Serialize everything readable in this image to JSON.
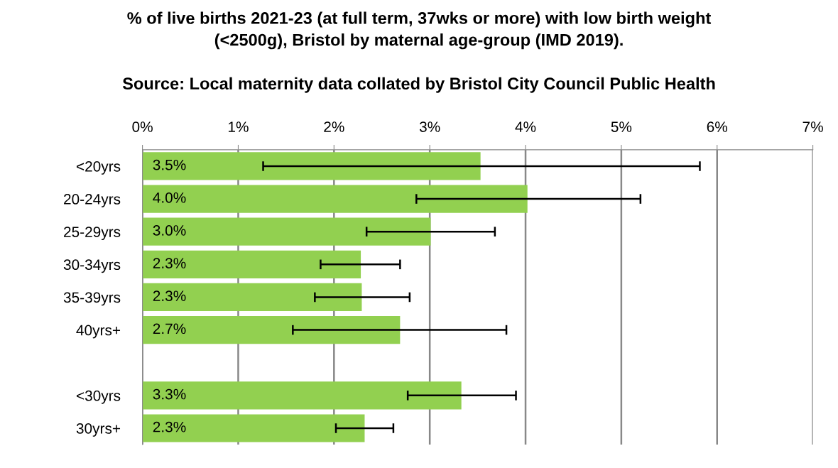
{
  "chart_data": {
    "type": "bar",
    "orientation": "horizontal",
    "title": "% of live births 2021-23 (at full term, 37wks or more) with low birth weight\n(<2500g), Bristol by maternal age-group (IMD 2019).",
    "annotations": [
      "Source: Local maternity data collated by Bristol City Council Public Health"
    ],
    "categories": [
      "<20yrs",
      "20-24yrs",
      "25-29yrs",
      "30-34yrs",
      "35-39yrs",
      "40yrs+",
      null,
      "<30yrs",
      "30yrs+"
    ],
    "values": [
      3.53,
      4.02,
      3.01,
      2.28,
      2.29,
      2.69,
      null,
      3.33,
      2.32
    ],
    "errors": [
      [
        1.26,
        5.82
      ],
      [
        2.86,
        5.2
      ],
      [
        2.34,
        3.68
      ],
      [
        1.86,
        2.69
      ],
      [
        1.8,
        2.79
      ],
      [
        1.57,
        3.8
      ],
      null,
      [
        2.77,
        3.9
      ],
      [
        2.02,
        2.62
      ]
    ],
    "value_labels": [
      "3.5%",
      "4.0%",
      "3.0%",
      "2.3%",
      "2.3%",
      "2.7%",
      null,
      "3.3%",
      "2.3%"
    ],
    "color": "#92d050",
    "xlim": [
      0,
      7
    ],
    "xticks": [
      {
        "value": 0,
        "label": "0%"
      },
      {
        "value": 1,
        "label": "1%"
      },
      {
        "value": 2,
        "label": "2%"
      },
      {
        "value": 3,
        "label": "3%"
      },
      {
        "value": 4,
        "label": "4%"
      },
      {
        "value": 5,
        "label": "5%"
      },
      {
        "value": 6,
        "label": "6%"
      },
      {
        "value": 7,
        "label": "7%"
      }
    ],
    "grid": "x"
  }
}
